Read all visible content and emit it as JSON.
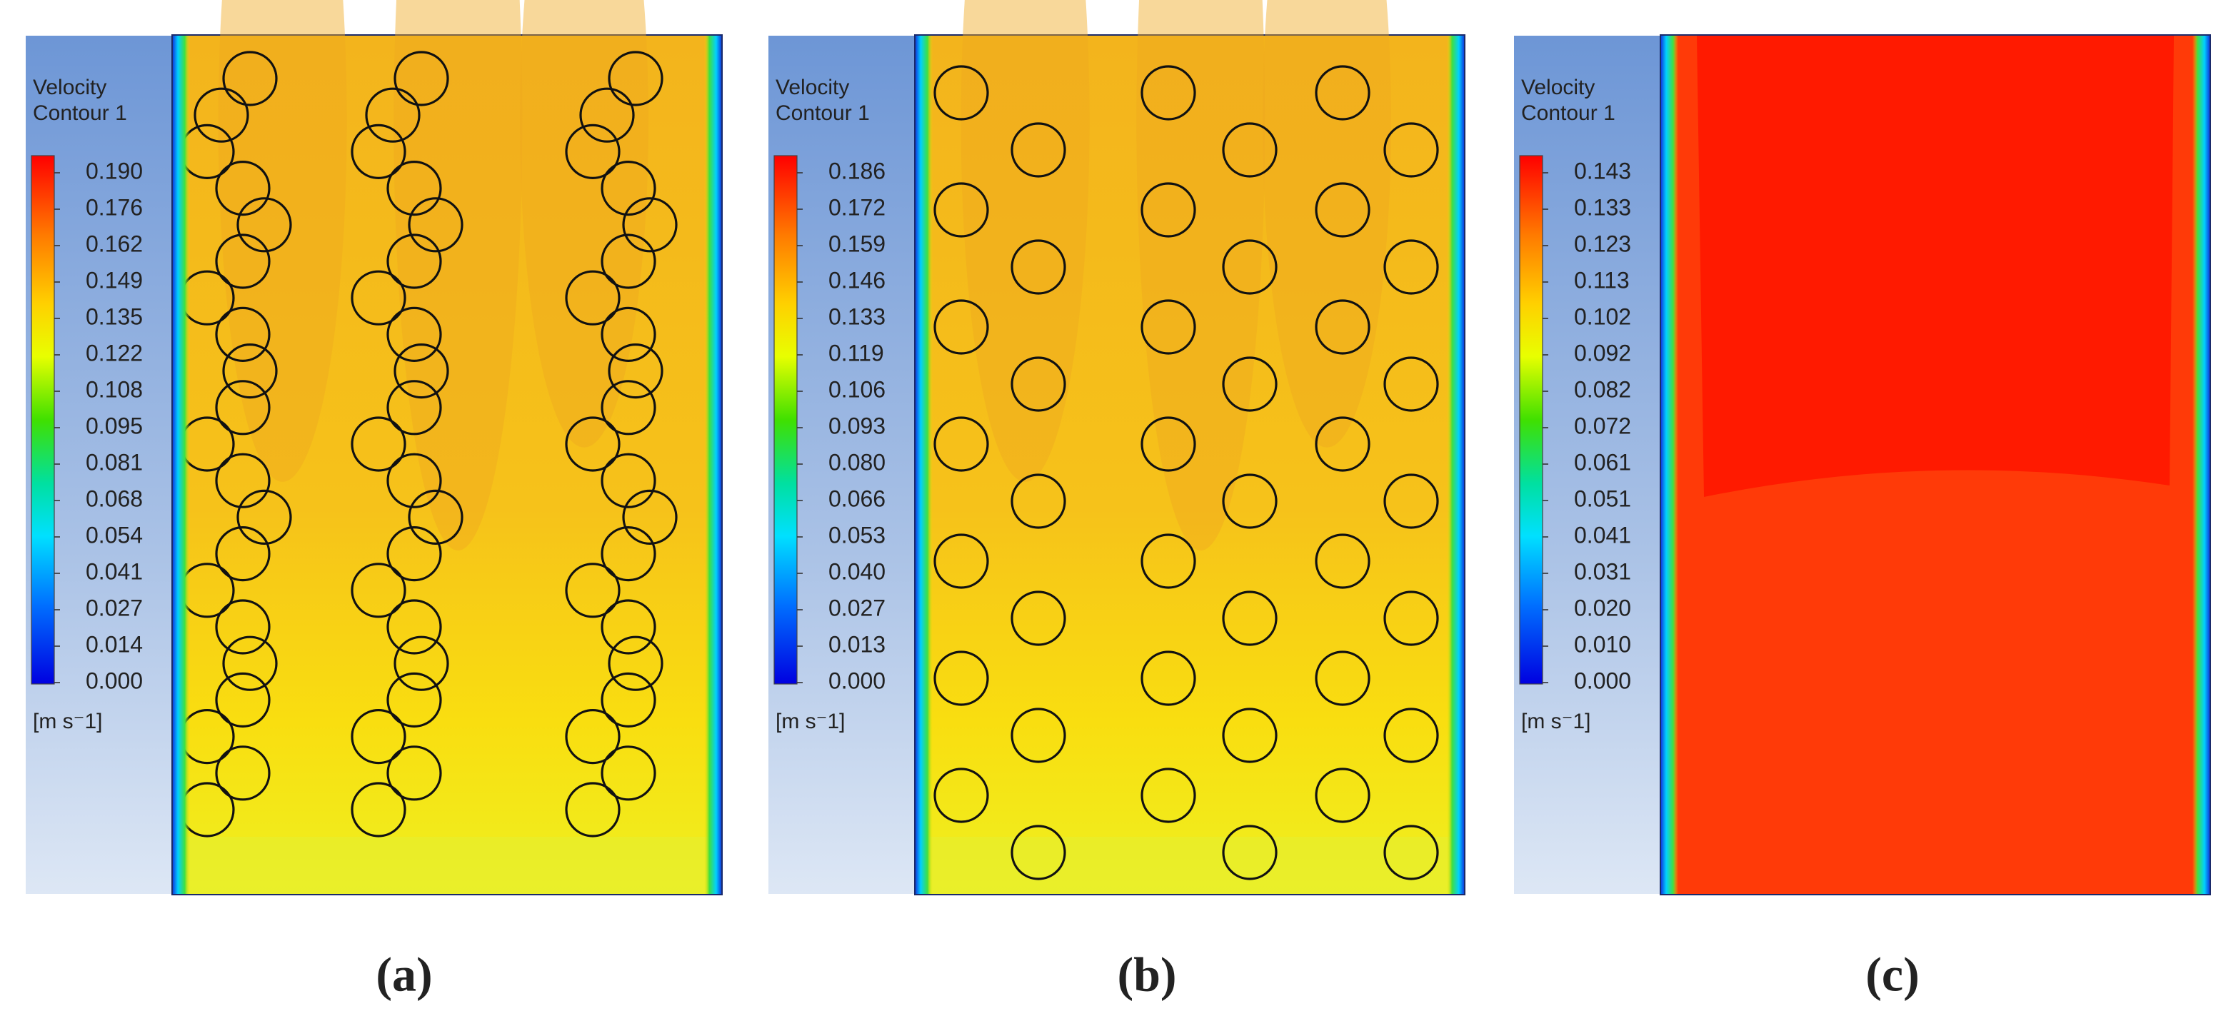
{
  "panels": [
    {
      "legend_title": [
        "Velocity",
        "Contour 1"
      ],
      "ticks": [
        "0.190",
        "0.176",
        "0.162",
        "0.149",
        "0.135",
        "0.122",
        "0.108",
        "0.095",
        "0.081",
        "0.068",
        "0.054",
        "0.041",
        "0.027",
        "0.014",
        "0.000"
      ],
      "unit": "[m s⁻1]",
      "caption": "(a)"
    },
    {
      "legend_title": [
        "Velocity",
        "Contour 1"
      ],
      "ticks": [
        "0.186",
        "0.172",
        "0.159",
        "0.146",
        "0.133",
        "0.119",
        "0.106",
        "0.093",
        "0.080",
        "0.066",
        "0.053",
        "0.040",
        "0.027",
        "0.013",
        "0.000"
      ],
      "unit": "[m s⁻1]",
      "caption": "(b)"
    },
    {
      "legend_title": [
        "Velocity",
        "Contour 1"
      ],
      "ticks": [
        "0.143",
        "0.133",
        "0.123",
        "0.113",
        "0.102",
        "0.092",
        "0.082",
        "0.072",
        "0.061",
        "0.051",
        "0.041",
        "0.031",
        "0.020",
        "0.010",
        "0.000"
      ],
      "unit": "[m s⁻1]",
      "caption": "(c)"
    }
  ]
}
